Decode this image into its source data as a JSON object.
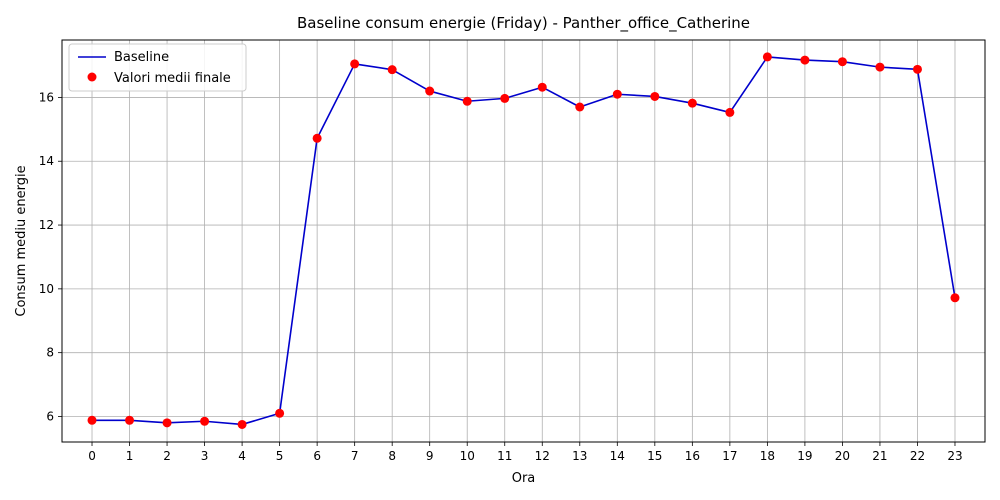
{
  "chart_data": {
    "type": "line",
    "title": "Baseline consum energie (Friday) - Panther_office_Catherine",
    "xlabel": "Ora",
    "ylabel": "Consum mediu energie",
    "x": [
      0,
      1,
      2,
      3,
      4,
      5,
      6,
      7,
      8,
      9,
      10,
      11,
      12,
      13,
      14,
      15,
      16,
      17,
      18,
      19,
      20,
      21,
      22,
      23
    ],
    "xticks": [
      "0",
      "1",
      "2",
      "3",
      "4",
      "5",
      "6",
      "7",
      "8",
      "9",
      "10",
      "11",
      "12",
      "13",
      "14",
      "15",
      "16",
      "17",
      "18",
      "19",
      "20",
      "21",
      "22",
      "23"
    ],
    "yticks": [
      6,
      8,
      10,
      12,
      14,
      16
    ],
    "ylim": [
      5.2,
      17.8
    ],
    "xlim": [
      -0.8,
      23.8
    ],
    "grid": true,
    "legend_position": "top-left",
    "series": [
      {
        "name": "Baseline",
        "kind": "line",
        "color": "#0000cc",
        "values": [
          5.88,
          5.88,
          5.8,
          5.85,
          5.75,
          6.1,
          14.72,
          17.05,
          16.87,
          16.2,
          15.88,
          15.97,
          16.32,
          15.7,
          16.1,
          16.03,
          15.82,
          15.53,
          17.27,
          17.17,
          17.12,
          16.95,
          16.88,
          9.72
        ]
      },
      {
        "name": "Valori medii finale",
        "kind": "scatter",
        "color": "#ff0000",
        "values": [
          5.88,
          5.88,
          5.8,
          5.85,
          5.75,
          6.1,
          14.72,
          17.05,
          16.87,
          16.2,
          15.88,
          15.97,
          16.32,
          15.7,
          16.1,
          16.03,
          15.82,
          15.53,
          17.27,
          17.17,
          17.12,
          16.95,
          16.88,
          9.72
        ]
      }
    ]
  }
}
